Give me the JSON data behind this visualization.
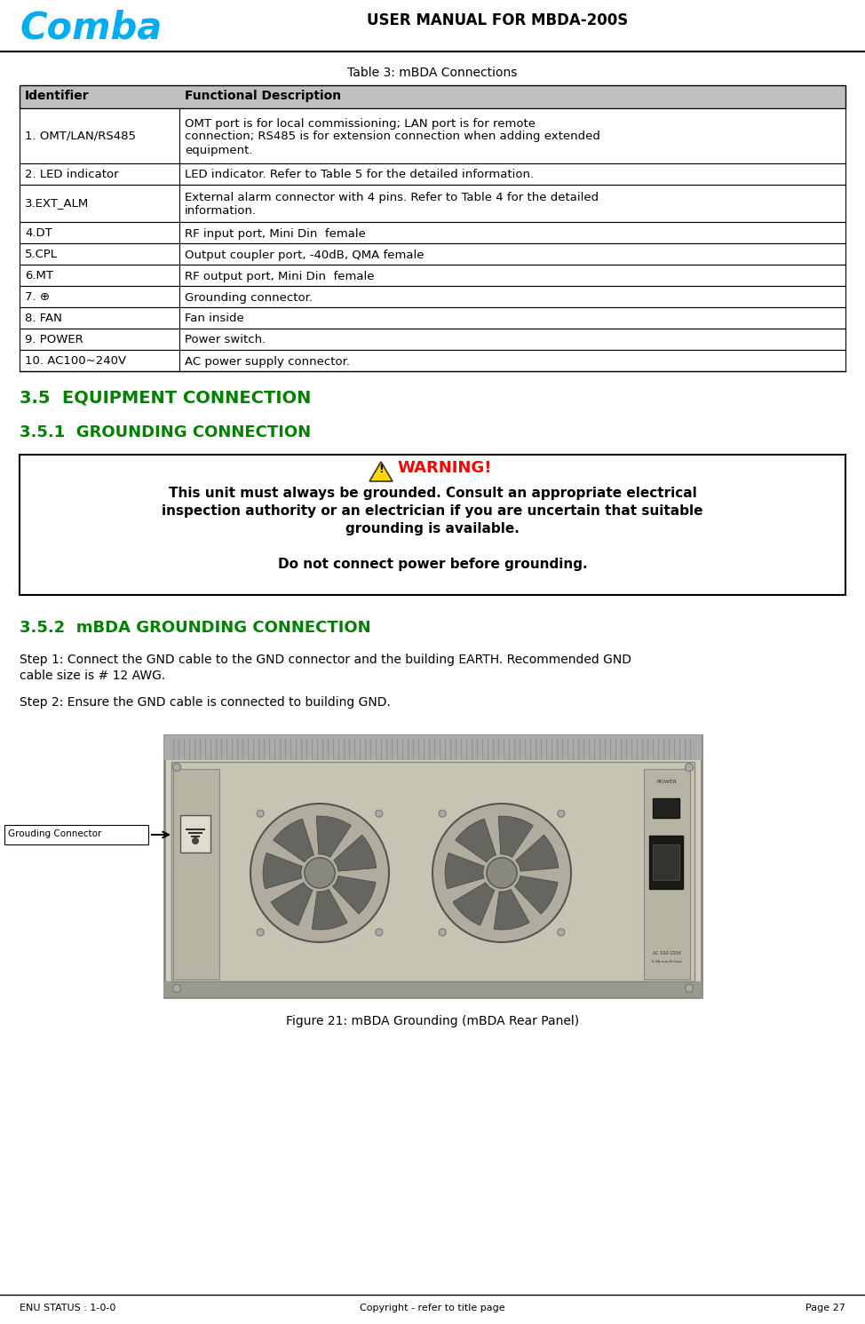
{
  "page_title": "USER MANUAL FOR MBDA-200S",
  "comba_color": "#00AEEF",
  "section_color": "#008000",
  "table_title": "Table 3: mBDA Connections",
  "table_headers": [
    "Identifier",
    "Functional Description"
  ],
  "table_rows": [
    [
      "1. OMT/LAN/RS485",
      "OMT port is for local commissioning; LAN port is for remote\nconnection; RS485 is for extension connection when adding extended\nequipment."
    ],
    [
      "2. LED indicator",
      "LED indicator. Refer to Table 5 for the detailed information."
    ],
    [
      "3.EXT_ALM",
      "External alarm connector with 4 pins. Refer to Table 4 for the detailed\ninformation."
    ],
    [
      "4.DT",
      "RF input port, Mini Din  female"
    ],
    [
      "5.CPL",
      "Output coupler port, -40dB, QMA female"
    ],
    [
      "6.MT",
      "RF output port, Mini Din  female"
    ],
    [
      "7. ⊕",
      "Grounding connector."
    ],
    [
      "8. FAN",
      "Fan inside"
    ],
    [
      "9. POWER",
      "Power switch."
    ],
    [
      "10. AC100~240V",
      "AC power supply connector."
    ]
  ],
  "table_row_heights": [
    62,
    24,
    42,
    24,
    24,
    24,
    24,
    24,
    24,
    24
  ],
  "header_bg": "#C0C0C0",
  "section_35": "3.5  EQUIPMENT CONNECTION",
  "section_351": "3.5.1  GROUNDING CONNECTION",
  "warning_color": "#FF0000",
  "warning_icon_color": "#FFD700",
  "section_352": "3.5.2  mBDA GROUNDING CONNECTION",
  "step1_line1": "Step 1: Connect the GND cable to the GND connector and the building EARTH. Recommended GND",
  "step1_line2": "cable size is # 12 AWG.",
  "step2": "Step 2: Ensure the GND cable is connected to building GND.",
  "figure_caption": "Figure 21: mBDA Grounding (mBDA Rear Panel)",
  "grounding_label": "Grouding Connector",
  "footer_left": "ENU STATUS : 1-0-0",
  "footer_center": "Copyright - refer to title page",
  "footer_right": "Page 27",
  "bg_color": "#FFFFFF",
  "table_border_color": "#000000"
}
